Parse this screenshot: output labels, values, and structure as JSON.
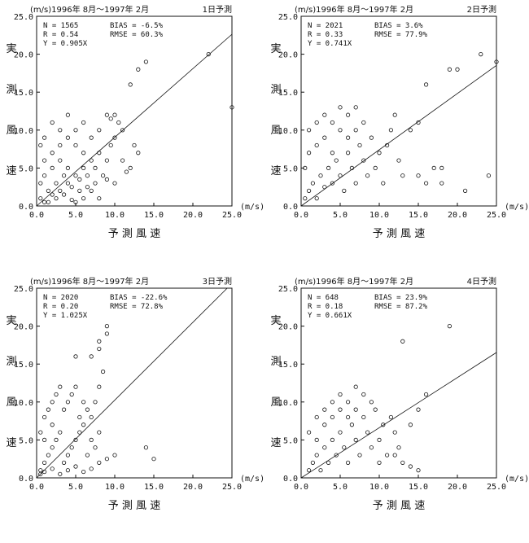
{
  "panels": [
    {
      "header": "(m/s)1996年 8月〜1997年 2月",
      "day_label": "1日予測",
      "stats": [
        "N = 1565",
        "R = 0.54",
        "Y = 0.905X",
        "BIAS = -6.5%",
        "RMSE = 60.3%"
      ]
    },
    {
      "header": "(m/s)1996年 8月〜1997年 2月",
      "day_label": "2日予測",
      "stats": [
        "N = 2021",
        "R = 0.33",
        "Y = 0.741X",
        "BIAS = 3.6%",
        "RMSE = 77.9%"
      ]
    },
    {
      "header": "(m/s)1996年 8月〜1997年 2月",
      "day_label": "3日予測",
      "stats": [
        "N = 2020",
        "R = 0.20",
        "Y = 1.025X",
        "BIAS = -22.6%",
        "RMSE = 72.8%"
      ]
    },
    {
      "header": "(m/s)1996年 8月〜1997年 2月",
      "day_label": "4日予測",
      "stats": [
        "N = 648",
        "R = 0.18",
        "Y = 0.661X",
        "BIAS = 23.9%",
        "RMSE = 87.2%"
      ]
    }
  ],
  "chart_data": [
    {
      "type": "scatter",
      "title": "1日予測",
      "xlabel": "予 測 風 速",
      "ylabel": "実 測 風 速",
      "unit": "(m/s)",
      "xlim": [
        0,
        25
      ],
      "ylim": [
        0,
        25
      ],
      "x_ticks": [
        "0.0",
        "5.0",
        "10.0",
        "15.0",
        "20.0",
        "25.0"
      ],
      "y_ticks": [
        "0.0",
        "5.0",
        "10.0",
        "15.0",
        "20.0",
        "25.0"
      ],
      "regression_slope": 0.905,
      "points": [
        [
          0.5,
          1
        ],
        [
          1,
          0.5
        ],
        [
          1.5,
          2
        ],
        [
          2,
          1.5
        ],
        [
          2.5,
          3
        ],
        [
          3,
          2
        ],
        [
          3.5,
          4
        ],
        [
          4,
          3
        ],
        [
          1,
          4
        ],
        [
          2,
          5
        ],
        [
          3,
          6
        ],
        [
          4,
          5
        ],
        [
          5,
          4
        ],
        [
          4.5,
          2.5
        ],
        [
          5.5,
          3.5
        ],
        [
          6,
          5
        ],
        [
          6.5,
          4
        ],
        [
          7,
          6
        ],
        [
          7.5,
          5
        ],
        [
          8,
          7
        ],
        [
          3,
          8
        ],
        [
          4,
          9
        ],
        [
          5,
          10
        ],
        [
          6,
          7
        ],
        [
          2,
          7
        ],
        [
          1,
          6
        ],
        [
          0.5,
          3
        ],
        [
          1.5,
          0.5
        ],
        [
          2.5,
          1
        ],
        [
          3.5,
          1.5
        ],
        [
          4.5,
          0.8
        ],
        [
          5.5,
          2
        ],
        [
          6.5,
          2.5
        ],
        [
          7.5,
          3
        ],
        [
          8.5,
          4
        ],
        [
          9,
          6
        ],
        [
          9.5,
          8
        ],
        [
          10,
          9
        ],
        [
          10.5,
          11
        ],
        [
          11,
          10
        ],
        [
          9,
          12
        ],
        [
          8,
          10
        ],
        [
          7,
          9
        ],
        [
          6,
          11
        ],
        [
          5,
          8
        ],
        [
          11,
          6
        ],
        [
          12,
          5
        ],
        [
          12.5,
          8
        ],
        [
          13,
          7
        ],
        [
          10,
          3
        ],
        [
          10,
          12
        ],
        [
          9.5,
          11.5
        ],
        [
          12,
          16
        ],
        [
          13,
          18
        ],
        [
          14,
          19
        ],
        [
          22,
          20
        ],
        [
          25,
          13
        ],
        [
          4,
          12
        ],
        [
          2,
          11
        ],
        [
          3,
          10
        ],
        [
          1,
          9
        ],
        [
          0.5,
          8
        ],
        [
          7,
          2
        ],
        [
          8,
          1
        ],
        [
          9,
          3.5
        ],
        [
          11.5,
          4.5
        ],
        [
          6,
          1
        ],
        [
          5,
          0.5
        ]
      ]
    },
    {
      "type": "scatter",
      "title": "2日予測",
      "xlabel": "予 測 風 速",
      "ylabel": "実 測 風 速",
      "unit": "(m/s)",
      "xlim": [
        0,
        25
      ],
      "ylim": [
        0,
        25
      ],
      "x_ticks": [
        "0.0",
        "5.0",
        "10.0",
        "15.0",
        "20.0",
        "25.0"
      ],
      "y_ticks": [
        "0.0",
        "5.0",
        "10.0",
        "15.0",
        "20.0",
        "25.0"
      ],
      "regression_slope": 0.741,
      "points": [
        [
          0.5,
          1
        ],
        [
          1,
          2
        ],
        [
          1.5,
          3
        ],
        [
          2,
          1
        ],
        [
          2.5,
          4
        ],
        [
          3,
          2.5
        ],
        [
          3.5,
          5
        ],
        [
          4,
          3
        ],
        [
          4.5,
          6
        ],
        [
          5,
          4
        ],
        [
          5.5,
          2
        ],
        [
          6,
          7
        ],
        [
          6.5,
          5
        ],
        [
          7,
          3
        ],
        [
          7.5,
          8
        ],
        [
          8,
          6
        ],
        [
          8.5,
          4
        ],
        [
          9,
          9
        ],
        [
          9.5,
          5
        ],
        [
          10,
          7
        ],
        [
          10.5,
          3
        ],
        [
          11,
          8
        ],
        [
          11.5,
          10
        ],
        [
          12,
          12
        ],
        [
          12.5,
          6
        ],
        [
          13,
          4
        ],
        [
          14,
          10
        ],
        [
          15,
          11
        ],
        [
          16,
          16
        ],
        [
          17,
          5
        ],
        [
          18,
          5
        ],
        [
          18,
          3
        ],
        [
          19,
          18
        ],
        [
          20,
          18
        ],
        [
          21,
          2
        ],
        [
          23,
          20
        ],
        [
          24,
          4
        ],
        [
          25,
          19
        ],
        [
          1,
          10
        ],
        [
          2,
          11
        ],
        [
          3,
          12
        ],
        [
          4,
          11
        ],
        [
          5,
          13
        ],
        [
          6,
          12
        ],
        [
          7,
          10
        ],
        [
          8,
          11
        ],
        [
          1,
          7
        ],
        [
          0.5,
          5
        ],
        [
          2,
          8
        ],
        [
          3,
          9
        ],
        [
          4,
          7
        ],
        [
          5,
          10
        ],
        [
          6,
          9
        ],
        [
          7,
          13
        ],
        [
          16,
          3
        ],
        [
          15,
          4
        ]
      ]
    },
    {
      "type": "scatter",
      "title": "3日予測",
      "xlabel": "予 測 風 速",
      "ylabel": "実 測 風 速",
      "unit": "(m/s)",
      "xlim": [
        0,
        25
      ],
      "ylim": [
        0,
        25
      ],
      "x_ticks": [
        "0.0",
        "5.0",
        "10.0",
        "15.0",
        "20.0",
        "25.0"
      ],
      "y_ticks": [
        "0.0",
        "5.0",
        "10.0",
        "15.0",
        "20.0",
        "25.0"
      ],
      "regression_slope": 1.025,
      "points": [
        [
          0.5,
          1
        ],
        [
          1,
          2
        ],
        [
          1.5,
          3
        ],
        [
          2,
          4
        ],
        [
          2.5,
          5
        ],
        [
          3,
          6
        ],
        [
          3.5,
          2
        ],
        [
          4,
          3
        ],
        [
          4.5,
          4
        ],
        [
          5,
          5
        ],
        [
          5.5,
          6
        ],
        [
          6,
          7
        ],
        [
          6.5,
          3
        ],
        [
          7,
          5
        ],
        [
          7.5,
          4
        ],
        [
          8,
          6
        ],
        [
          0.5,
          6
        ],
        [
          1,
          8
        ],
        [
          1.5,
          9
        ],
        [
          2,
          10
        ],
        [
          2.5,
          11
        ],
        [
          3,
          12
        ],
        [
          3.5,
          9
        ],
        [
          4,
          10
        ],
        [
          4.5,
          11
        ],
        [
          5,
          12
        ],
        [
          5.5,
          8
        ],
        [
          6,
          10
        ],
        [
          6.5,
          9
        ],
        [
          7,
          8
        ],
        [
          7.5,
          10
        ],
        [
          8,
          12
        ],
        [
          8.5,
          14
        ],
        [
          8,
          17
        ],
        [
          8,
          18
        ],
        [
          9,
          19
        ],
        [
          9,
          20
        ],
        [
          7,
          16
        ],
        [
          5,
          16
        ],
        [
          2,
          7
        ],
        [
          1,
          5
        ],
        [
          0.5,
          0.5
        ],
        [
          1,
          0.8
        ],
        [
          2,
          1.2
        ],
        [
          3,
          0.5
        ],
        [
          4,
          1
        ],
        [
          5,
          1.5
        ],
        [
          6,
          0.8
        ],
        [
          7,
          1.2
        ],
        [
          8,
          2
        ],
        [
          9,
          2.5
        ],
        [
          10,
          3
        ],
        [
          14,
          4
        ],
        [
          15,
          2.5
        ]
      ]
    },
    {
      "type": "scatter",
      "title": "4日予測",
      "xlabel": "予 測 風 速",
      "ylabel": "実 測 風 速",
      "unit": "(m/s)",
      "xlim": [
        0,
        25
      ],
      "ylim": [
        0,
        25
      ],
      "x_ticks": [
        "0.0",
        "5.0",
        "10.0",
        "15.0",
        "20.0",
        "25.0"
      ],
      "y_ticks": [
        "0.0",
        "5.0",
        "10.0",
        "15.0",
        "20.0",
        "25.0"
      ],
      "regression_slope": 0.661,
      "points": [
        [
          1,
          1
        ],
        [
          1.5,
          2
        ],
        [
          2,
          3
        ],
        [
          2.5,
          1
        ],
        [
          3,
          4
        ],
        [
          3.5,
          2
        ],
        [
          4,
          5
        ],
        [
          4.5,
          3
        ],
        [
          5,
          6
        ],
        [
          5.5,
          4
        ],
        [
          6,
          2
        ],
        [
          6.5,
          7
        ],
        [
          7,
          5
        ],
        [
          7.5,
          3
        ],
        [
          8,
          8
        ],
        [
          8.5,
          6
        ],
        [
          9,
          4
        ],
        [
          9.5,
          9
        ],
        [
          10,
          5
        ],
        [
          10.5,
          7
        ],
        [
          11,
          3
        ],
        [
          11.5,
          8
        ],
        [
          12,
          6
        ],
        [
          12.5,
          4
        ],
        [
          13,
          2
        ],
        [
          14,
          7
        ],
        [
          15,
          9
        ],
        [
          15,
          1
        ],
        [
          16,
          11
        ],
        [
          13,
          18
        ],
        [
          19,
          20
        ],
        [
          2,
          8
        ],
        [
          3,
          9
        ],
        [
          4,
          10
        ],
        [
          5,
          11
        ],
        [
          6,
          10
        ],
        [
          7,
          12
        ],
        [
          8,
          11
        ],
        [
          9,
          10
        ],
        [
          1,
          6
        ],
        [
          2,
          5
        ],
        [
          3,
          7
        ],
        [
          4,
          8
        ],
        [
          5,
          9
        ],
        [
          6,
          8
        ],
        [
          7,
          9
        ],
        [
          10,
          2
        ],
        [
          12,
          3
        ],
        [
          14,
          1.5
        ]
      ]
    }
  ]
}
